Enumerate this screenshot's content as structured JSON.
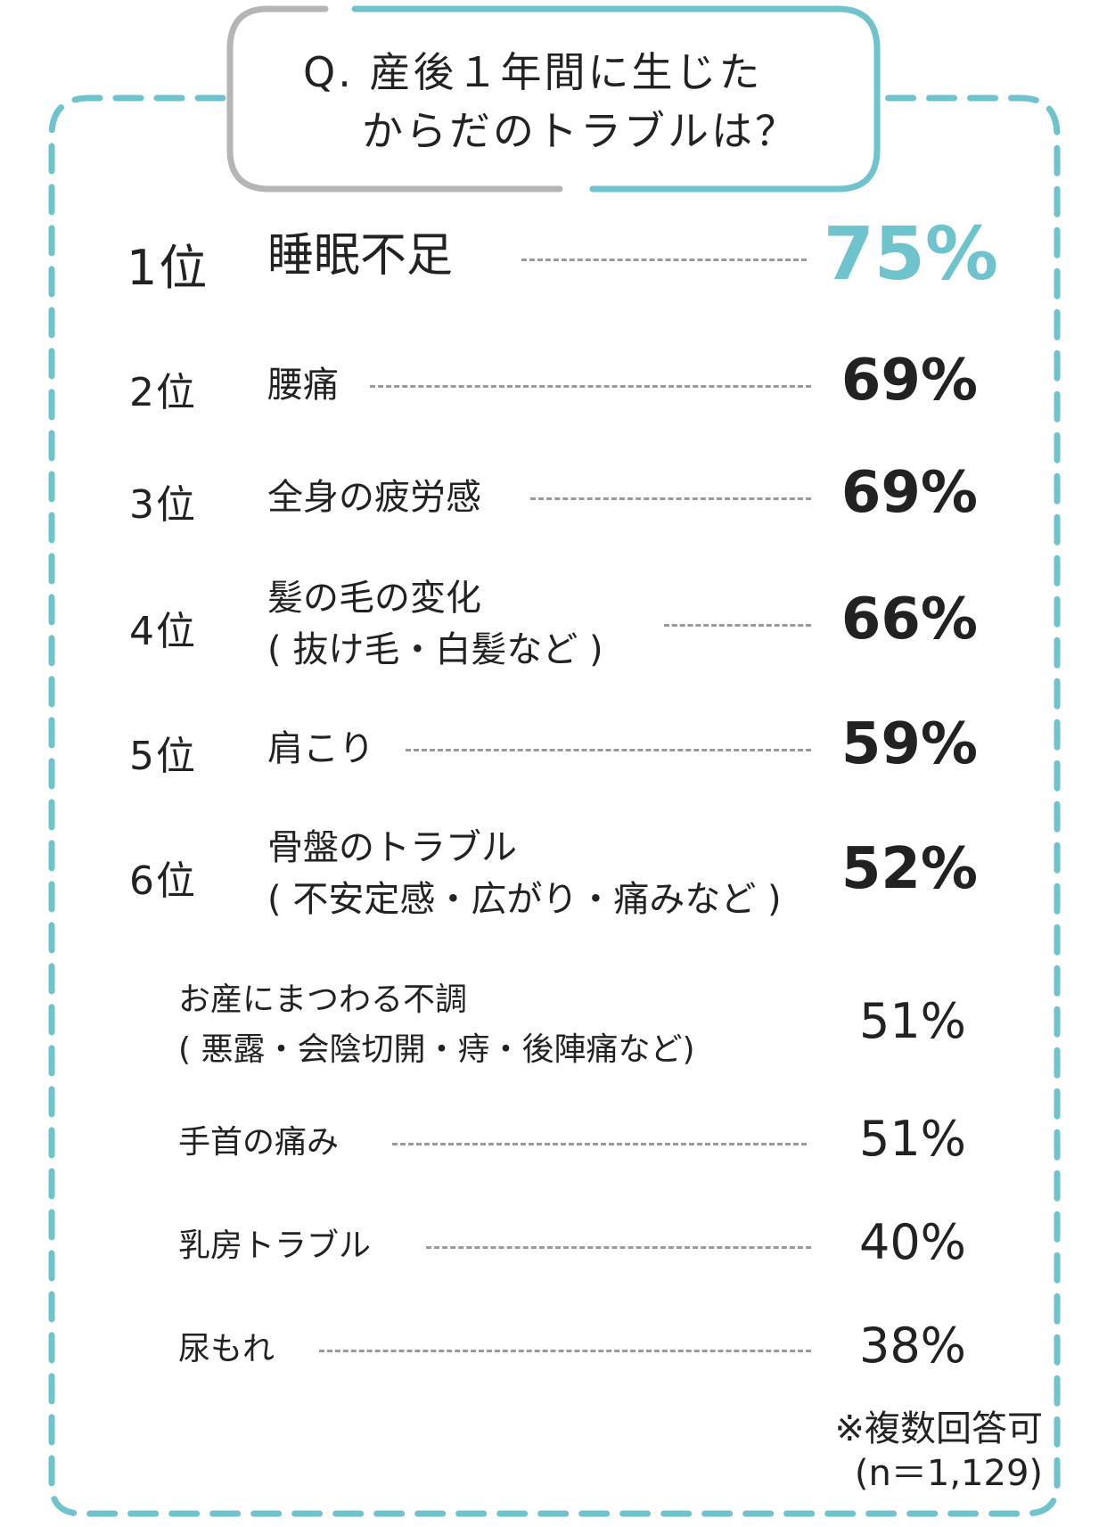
{
  "question_line1": "Q. 産後１年間に生じた",
  "question_line2": "からだのトラブルは？",
  "chart_data": {
    "type": "table",
    "rows": [
      {
        "rank": "1位",
        "label": [
          "睡眠不足"
        ],
        "value": 75,
        "value_label": "75%"
      },
      {
        "rank": "2位",
        "label": [
          "腰痛"
        ],
        "value": 69,
        "value_label": "69%"
      },
      {
        "rank": "3位",
        "label": [
          "全身の疲労感"
        ],
        "value": 69,
        "value_label": "69%"
      },
      {
        "rank": "4位",
        "label": [
          "髪の毛の変化",
          "( 抜け毛・白髪など )"
        ],
        "value": 66,
        "value_label": "66%"
      },
      {
        "rank": "5位",
        "label": [
          "肩こり"
        ],
        "value": 59,
        "value_label": "59%"
      },
      {
        "rank": "6位",
        "label": [
          "骨盤のトラブル",
          "( 不安定感・広がり・痛みなど )"
        ],
        "value": 52,
        "value_label": "52%"
      },
      {
        "rank": "",
        "label": [
          "お産にまつわる不調",
          "( 悪露・会陰切開・痔・後陣痛など)"
        ],
        "value": 51,
        "value_label": "51%"
      },
      {
        "rank": "",
        "label": [
          "手首の痛み"
        ],
        "value": 51,
        "value_label": "51%"
      },
      {
        "rank": "",
        "label": [
          "乳房トラブル"
        ],
        "value": 40,
        "value_label": "40%"
      },
      {
        "rank": "",
        "label": [
          "尿もれ"
        ],
        "value": 38,
        "value_label": "38%"
      }
    ]
  },
  "note_line1": "※複数回答可",
  "note_line2": "(n＝1,129)",
  "colors": {
    "accent": "#6fc3cc",
    "frame_gray": "#b5b5b5",
    "text": "#222222"
  }
}
